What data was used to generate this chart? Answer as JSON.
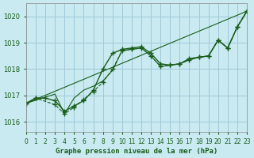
{
  "title": "Graphe pression niveau de la mer (hPa)",
  "bg_color": "#c8eaf0",
  "grid_color": "#a0c8d8",
  "line_color": "#1a5c1a",
  "xlim": [
    0,
    23
  ],
  "ylim": [
    1015.6,
    1020.5
  ],
  "yticks": [
    1016,
    1017,
    1018,
    1019,
    1020
  ],
  "xticks": [
    0,
    1,
    2,
    3,
    4,
    5,
    6,
    7,
    8,
    9,
    10,
    11,
    12,
    13,
    14,
    15,
    16,
    17,
    18,
    19,
    20,
    21,
    22,
    23
  ],
  "series": [
    {
      "x": [
        0,
        1,
        2,
        3,
        4,
        5,
        6,
        7,
        8,
        9,
        10,
        11,
        12,
        13,
        14,
        15,
        16,
        17,
        18,
        19,
        20,
        21,
        22,
        23
      ],
      "y": [
        1016.7,
        1016.9,
        1016.9,
        1016.8,
        1016.4,
        1016.6,
        1016.8,
        1017.2,
        1018.0,
        1018.6,
        1018.75,
        1018.8,
        1018.85,
        1018.6,
        1018.2,
        1018.15,
        1018.2,
        1018.4,
        1018.45,
        1018.5,
        1019.1,
        1018.8,
        1019.6,
        1020.2
      ],
      "style": "-",
      "marker": "+"
    },
    {
      "x": [
        0,
        1,
        3,
        4,
        5,
        6,
        7,
        8,
        9,
        10,
        11,
        12,
        13,
        14,
        15,
        16,
        17,
        18,
        19,
        20,
        21,
        22,
        23
      ],
      "y": [
        1016.7,
        1016.9,
        1016.65,
        1016.3,
        1016.55,
        1016.85,
        1017.15,
        1017.5,
        1018.0,
        1018.7,
        1018.75,
        1018.8,
        1018.5,
        1018.1,
        1018.15,
        1018.2,
        1018.35,
        1018.45,
        1018.5,
        1019.1,
        1018.8,
        1019.6,
        1020.2
      ],
      "style": "--",
      "marker": "+"
    },
    {
      "x": [
        0,
        3,
        4,
        5,
        6,
        7,
        8,
        9,
        10,
        11,
        12,
        13,
        14,
        15,
        16,
        17,
        18,
        19,
        20,
        21,
        22,
        23
      ],
      "y": [
        1016.7,
        1017.05,
        1016.3,
        1016.9,
        1017.2,
        1017.35,
        1017.55,
        1017.95,
        1018.7,
        1018.75,
        1018.8,
        1018.5,
        1018.1,
        1018.15,
        1018.2,
        1018.35,
        1018.45,
        1018.5,
        1019.1,
        1018.8,
        1019.6,
        1020.2
      ],
      "style": "-",
      "marker": null
    },
    {
      "x": [
        0,
        23
      ],
      "y": [
        1016.7,
        1020.2
      ],
      "style": "-",
      "marker": null
    }
  ]
}
